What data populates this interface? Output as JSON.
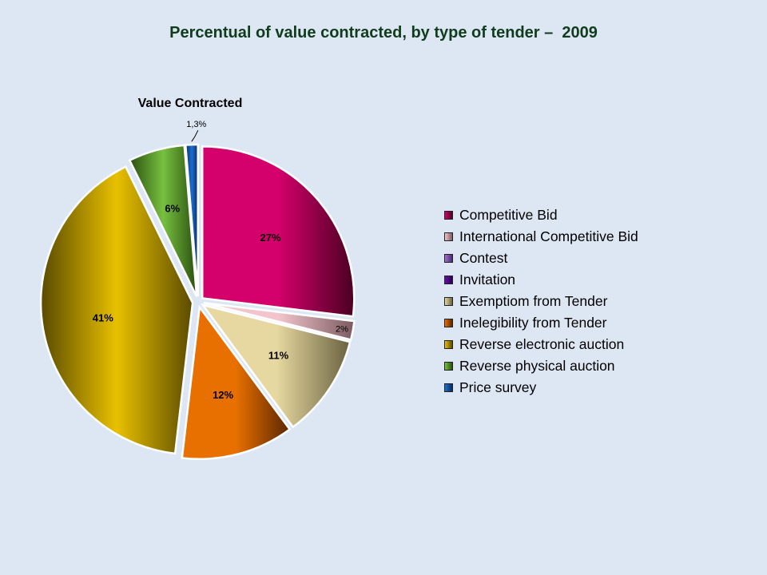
{
  "page": {
    "title": "Percentual of value contracted, by type of tender –  2009",
    "background": "#dde6f3",
    "title_color": "#0f3d1c"
  },
  "chart_data": {
    "type": "pie",
    "title": "Value Contracted",
    "legend_position": "right",
    "exploded": true,
    "slices": [
      {
        "name": "Competitive Bid",
        "value": 27,
        "label": "27%",
        "color": "#d4006b",
        "dark": "#4a0022"
      },
      {
        "name": "International Competitive Bid",
        "value": 2,
        "label": "2%",
        "color": "#f2c4cc",
        "dark": "#7a5a60"
      },
      {
        "name": "Contest",
        "value": 0,
        "label": "",
        "color": "#a070d0",
        "dark": "#4a2a70"
      },
      {
        "name": "Invitation",
        "value": 0,
        "label": "",
        "color": "#6a0dad",
        "dark": "#2a0050"
      },
      {
        "name": "Exemptiom from Tender",
        "value": 11,
        "label": "11%",
        "color": "#e6d8a0",
        "dark": "#6a6240"
      },
      {
        "name": "Inelegibility from Tender",
        "value": 12,
        "label": "12%",
        "color": "#e87000",
        "dark": "#5a2600"
      },
      {
        "name": "Reverse electronic auction",
        "value": 41,
        "label": "41%",
        "color": "#e8c000",
        "dark": "#5a4a00"
      },
      {
        "name": "Reverse physical auction",
        "value": 6,
        "label": "6%",
        "color": "#77c040",
        "dark": "#2a5010"
      },
      {
        "name": "Price survey",
        "value": 1.3,
        "label": "1,3%",
        "color": "#1a6fd0",
        "dark": "#0a2a60"
      }
    ]
  }
}
